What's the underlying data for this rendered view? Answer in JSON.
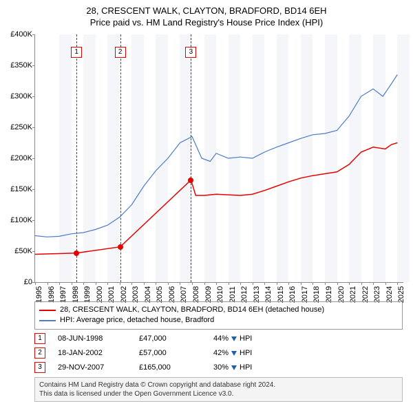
{
  "title_line1": "28, CRESCENT WALK, CLAYTON, BRADFORD, BD14 6EH",
  "title_line2": "Price paid vs. HM Land Registry's House Price Index (HPI)",
  "chart": {
    "type": "line",
    "x_start_year": 1995,
    "x_end_year": 2025.5,
    "xticks": [
      1995,
      1996,
      1997,
      1998,
      1999,
      2000,
      2001,
      2002,
      2003,
      2004,
      2005,
      2006,
      2007,
      2008,
      2009,
      2010,
      2011,
      2012,
      2013,
      2014,
      2015,
      2016,
      2017,
      2018,
      2019,
      2020,
      2021,
      2022,
      2023,
      2024,
      2025
    ],
    "ylim": [
      0,
      400000
    ],
    "yticks": [
      0,
      50000,
      100000,
      150000,
      200000,
      250000,
      300000,
      350000,
      400000
    ],
    "ytick_labels": [
      "£0",
      "£50K",
      "£100K",
      "£150K",
      "£200K",
      "£250K",
      "£300K",
      "£350K",
      "£400K"
    ],
    "band_years": [
      1997,
      1999,
      2001,
      2003,
      2005,
      2007,
      2009,
      2011,
      2013,
      2015,
      2017,
      2019,
      2021,
      2023,
      2025
    ],
    "band_color": "#f4f6fa",
    "background_color": "#ffffff",
    "grid_color": "#e0e0e0",
    "series": {
      "price_paid": {
        "color": "#e60000",
        "width": 1.5,
        "points": [
          [
            1995,
            45000
          ],
          [
            1998.43,
            47000
          ],
          [
            2002.05,
            57000
          ],
          [
            2007.91,
            165000
          ],
          [
            2008.3,
            140000
          ],
          [
            2009,
            140000
          ],
          [
            2010,
            142000
          ],
          [
            2011,
            141000
          ],
          [
            2012,
            140000
          ],
          [
            2013,
            142000
          ],
          [
            2014,
            148000
          ],
          [
            2015,
            155000
          ],
          [
            2016,
            162000
          ],
          [
            2017,
            168000
          ],
          [
            2018,
            172000
          ],
          [
            2019,
            175000
          ],
          [
            2020,
            178000
          ],
          [
            2021,
            190000
          ],
          [
            2022,
            210000
          ],
          [
            2023,
            218000
          ],
          [
            2024,
            215000
          ],
          [
            2024.5,
            222000
          ],
          [
            2025,
            225000
          ]
        ]
      },
      "hpi": {
        "color": "#4a7bc8",
        "width": 1.2,
        "points": [
          [
            1995,
            75000
          ],
          [
            1996,
            73000
          ],
          [
            1997,
            74000
          ],
          [
            1998,
            78000
          ],
          [
            1999,
            80000
          ],
          [
            2000,
            85000
          ],
          [
            2001,
            92000
          ],
          [
            2002,
            105000
          ],
          [
            2003,
            125000
          ],
          [
            2004,
            155000
          ],
          [
            2005,
            180000
          ],
          [
            2006,
            200000
          ],
          [
            2007,
            225000
          ],
          [
            2008,
            235000
          ],
          [
            2008.8,
            200000
          ],
          [
            2009.5,
            195000
          ],
          [
            2010,
            208000
          ],
          [
            2011,
            200000
          ],
          [
            2012,
            202000
          ],
          [
            2013,
            200000
          ],
          [
            2014,
            210000
          ],
          [
            2015,
            218000
          ],
          [
            2016,
            225000
          ],
          [
            2017,
            232000
          ],
          [
            2018,
            238000
          ],
          [
            2019,
            240000
          ],
          [
            2020,
            245000
          ],
          [
            2021,
            268000
          ],
          [
            2022,
            300000
          ],
          [
            2023,
            312000
          ],
          [
            2023.8,
            300000
          ],
          [
            2024.5,
            320000
          ],
          [
            2025,
            335000
          ]
        ]
      }
    },
    "markers": [
      {
        "n": "1",
        "year": 1998.43,
        "price": 47000
      },
      {
        "n": "2",
        "year": 2002.05,
        "price": 57000
      },
      {
        "n": "3",
        "year": 2007.91,
        "price": 165000
      }
    ]
  },
  "legend": [
    {
      "color": "#e60000",
      "label": "28, CRESCENT WALK, CLAYTON, BRADFORD, BD14 6EH (detached house)"
    },
    {
      "color": "#4a7bc8",
      "label": "HPI: Average price, detached house, Bradford"
    }
  ],
  "transactions": [
    {
      "n": "1",
      "date": "08-JUN-1998",
      "price": "£47,000",
      "pct": "44%",
      "vs": "HPI"
    },
    {
      "n": "2",
      "date": "18-JAN-2002",
      "price": "£57,000",
      "pct": "42%",
      "vs": "HPI"
    },
    {
      "n": "3",
      "date": "29-NOV-2007",
      "price": "£165,000",
      "pct": "30%",
      "vs": "HPI"
    }
  ],
  "footer_line1": "Contains HM Land Registry data © Crown copyright and database right 2024.",
  "footer_line2": "This data is licensed under the Open Government Licence v3.0."
}
